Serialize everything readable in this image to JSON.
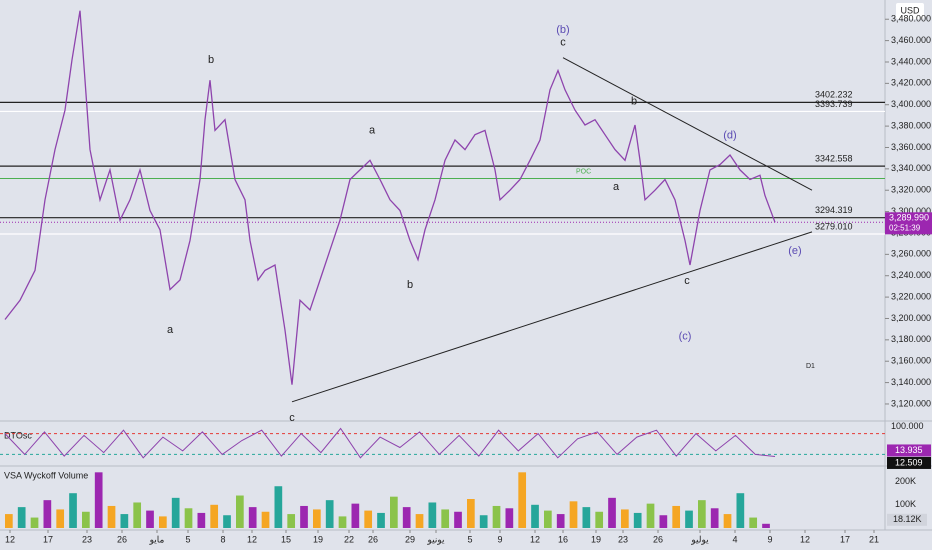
{
  "chart_data": {
    "type": "line",
    "currency": "USD",
    "x": [
      1,
      4,
      7,
      9,
      11,
      13,
      14.4,
      16,
      17,
      18,
      20,
      22,
      24,
      26,
      28,
      30,
      32,
      34,
      36,
      38,
      40,
      41,
      42,
      43,
      45,
      47,
      49,
      50,
      51.6,
      53,
      55,
      57,
      58.4,
      60,
      62,
      64,
      66,
      68,
      70,
      72,
      74,
      76,
      78,
      80,
      82,
      83.6,
      85,
      87,
      89,
      91,
      93,
      95,
      97,
      99,
      100,
      102,
      104,
      106,
      108,
      110,
      111.6,
      113,
      115,
      117,
      119,
      121,
      123,
      125,
      127,
      128,
      129,
      131,
      133,
      135,
      137,
      138,
      140,
      142,
      144,
      146,
      148,
      150,
      152,
      153,
      155
    ],
    "values": [
      3199,
      3217,
      3245,
      3311,
      3358,
      3395,
      3442,
      3488,
      3423,
      3358,
      3311,
      3339,
      3292,
      3311,
      3339,
      3301,
      3283,
      3227,
      3236,
      3273,
      3330,
      3386,
      3423,
      3376,
      3386,
      3330,
      3311,
      3273,
      3236,
      3245,
      3250,
      3189,
      3138,
      3217,
      3208,
      3236,
      3264,
      3292,
      3330,
      3339,
      3348,
      3330,
      3311,
      3301,
      3273,
      3255,
      3283,
      3311,
      3348,
      3367,
      3358,
      3372,
      3376,
      3339,
      3311,
      3320,
      3330,
      3348,
      3367,
      3414,
      3432,
      3414,
      3395,
      3381,
      3386,
      3372,
      3358,
      3348,
      3381,
      3348,
      3311,
      3320,
      3330,
      3311,
      3273,
      3250,
      3301,
      3339,
      3344,
      3353,
      3339,
      3330,
      3334,
      3315,
      3289.99
    ],
    "color": "#8e44ad",
    "xlim": [
      0,
      177
    ],
    "ylim": [
      3105,
      3498
    ],
    "yticks": [
      {
        "value": 3120,
        "label": "3,120.000"
      },
      {
        "value": 3140,
        "label": "3,140.000"
      },
      {
        "value": 3160,
        "label": "3,160.000"
      },
      {
        "value": 3180,
        "label": "3,180.000"
      },
      {
        "value": 3200,
        "label": "3,200.000"
      },
      {
        "value": 3220,
        "label": "3,220.000"
      },
      {
        "value": 3240,
        "label": "3,240.000"
      },
      {
        "value": 3260,
        "label": "3,260.000"
      },
      {
        "value": 3280,
        "label": "3,280.000"
      },
      {
        "value": 3300,
        "label": "3,300.000"
      },
      {
        "value": 3320,
        "label": "3,320.000"
      },
      {
        "value": 3340,
        "label": "3,340.000"
      },
      {
        "value": 3360,
        "label": "3,360.000"
      },
      {
        "value": 3380,
        "label": "3,380.000"
      },
      {
        "value": 3400,
        "label": "3,400.000"
      },
      {
        "value": 3420,
        "label": "3,420.000"
      },
      {
        "value": 3440,
        "label": "3,440.000"
      },
      {
        "value": 3460,
        "label": "3,460.000"
      },
      {
        "value": 3480,
        "label": "3,480.000"
      }
    ],
    "xticks": [
      {
        "value": 2,
        "label": "12"
      },
      {
        "value": 9.6,
        "label": "17"
      },
      {
        "value": 17.4,
        "label": "23"
      },
      {
        "value": 24.4,
        "label": "26"
      },
      {
        "value": 31.4,
        "label": "مايو"
      },
      {
        "value": 37.6,
        "label": "5"
      },
      {
        "value": 44.6,
        "label": "8"
      },
      {
        "value": 50.4,
        "label": "12"
      },
      {
        "value": 57.2,
        "label": "15"
      },
      {
        "value": 63.6,
        "label": "19"
      },
      {
        "value": 69.8,
        "label": "22"
      },
      {
        "value": 74.6,
        "label": "26"
      },
      {
        "value": 82,
        "label": "29"
      },
      {
        "value": 87.2,
        "label": "يونيو"
      },
      {
        "value": 94,
        "label": "5"
      },
      {
        "value": 100,
        "label": "9"
      },
      {
        "value": 107,
        "label": "12"
      },
      {
        "value": 112.6,
        "label": "16"
      },
      {
        "value": 119.2,
        "label": "19"
      },
      {
        "value": 124.6,
        "label": "23"
      },
      {
        "value": 131.6,
        "label": "26"
      },
      {
        "value": 140,
        "label": "يوليو"
      },
      {
        "value": 147,
        "label": "4"
      },
      {
        "value": 154,
        "label": "9"
      },
      {
        "value": 161,
        "label": "12"
      },
      {
        "value": 169,
        "label": "17"
      },
      {
        "value": 174.8,
        "label": "21"
      }
    ],
    "levels": [
      {
        "value": 3402.232,
        "color": "#222222"
      },
      {
        "value": 3393.739,
        "color": "#ffffff"
      },
      {
        "value": 3342.558,
        "color": "#222222"
      },
      {
        "value": 3294.319,
        "color": "#222222"
      },
      {
        "value": 3279.01,
        "label": "3279.010",
        "color": "#ffffff"
      }
    ],
    "poc": {
      "value": 3331,
      "label": "POC",
      "color": "#4caf50"
    },
    "trendlines": [
      {
        "x": [
          112.6,
          162.4
        ],
        "values": [
          3444,
          3320
        ]
      },
      {
        "x": [
          58.4,
          162.4
        ],
        "values": [
          3122,
          3281
        ]
      }
    ],
    "price": 3289.99,
    "price_label": "3,289.990",
    "countdown": "02:51:39",
    "annotations": [
      {
        "text": "b",
        "x": 42.2,
        "y": 3442,
        "color": "#222"
      },
      {
        "text": "a",
        "x": 34,
        "y": 3189,
        "color": "#222"
      },
      {
        "text": "c",
        "x": 58.4,
        "y": 3107,
        "color": "#222"
      },
      {
        "text": "a",
        "x": 74.4,
        "y": 3376,
        "color": "#222"
      },
      {
        "text": "b",
        "x": 82,
        "y": 3231,
        "color": "#222"
      },
      {
        "text": "(b)",
        "x": 112.6,
        "y": 3470,
        "color": "#5b4bb3"
      },
      {
        "text": "c",
        "x": 112.6,
        "y": 3458,
        "color": "#222"
      },
      {
        "text": "b",
        "x": 126.8,
        "y": 3403,
        "color": "#222"
      },
      {
        "text": "a",
        "x": 123.2,
        "y": 3323,
        "color": "#222"
      },
      {
        "text": "(d)",
        "x": 146,
        "y": 3371,
        "color": "#5b4bb3"
      },
      {
        "text": "c",
        "x": 137.4,
        "y": 3235,
        "color": "#222"
      },
      {
        "text": "(c)",
        "x": 137,
        "y": 3183,
        "color": "#5b4bb3"
      },
      {
        "text": "(e)",
        "x": 159,
        "y": 3263,
        "color": "#5b4bb3"
      }
    ],
    "timeframe": "D1",
    "oscillator": {
      "name": "DTOsc",
      "ylim": [
        -5,
        105
      ],
      "yticks": [
        {
          "value": 100,
          "label": "100.000"
        }
      ],
      "levels": [
        80,
        20
      ],
      "color": "#8e44ad",
      "values": [
        80,
        20,
        85,
        15,
        75,
        25,
        90,
        10,
        70,
        30,
        85,
        20,
        60,
        90,
        15,
        80,
        25,
        95,
        10,
        70,
        40,
        85,
        20,
        75,
        15,
        90,
        30,
        80,
        10,
        65,
        85,
        20,
        70,
        90,
        15,
        80,
        30,
        75,
        20,
        13.935
      ],
      "badges": [
        13.935,
        12.509
      ]
    },
    "volume": {
      "name": "VSA Wyckoff Volume",
      "ylim": [
        0,
        250000
      ],
      "yticks": [
        {
          "value": 200000,
          "label": "200K"
        },
        {
          "value": 100000,
          "label": "100K"
        }
      ],
      "colors": [
        "#f5a623",
        "#26a69a",
        "#8bc34a",
        "#9c27b0"
      ],
      "values": [
        60000,
        90000,
        45000,
        120000,
        80000,
        150000,
        70000,
        240000,
        95000,
        60000,
        110000,
        75000,
        50000,
        130000,
        85000,
        65000,
        100000,
        55000,
        140000,
        90000,
        70000,
        180000,
        60000,
        95000,
        80000,
        120000,
        50000,
        105000,
        75000,
        65000,
        135000,
        90000,
        60000,
        110000,
        80000,
        70000,
        125000,
        55000,
        95000,
        85000,
        240000,
        100000,
        75000,
        60000,
        115000,
        90000,
        70000,
        130000,
        80000,
        65000,
        105000,
        55000,
        95000,
        75000,
        120000,
        85000,
        60000,
        150000,
        45000,
        18120
      ],
      "value_labels": {
        "59": "18.12K"
      }
    }
  }
}
